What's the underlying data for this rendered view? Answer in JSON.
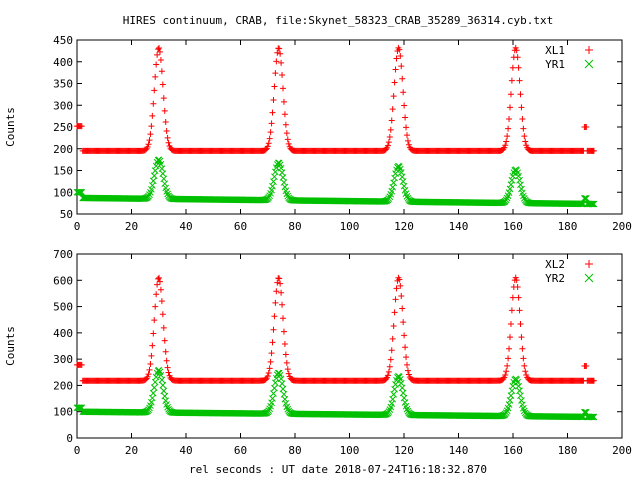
{
  "title": "HIRES continuum, CRAB, file:Skynet_58323_CRAB_35289_36314.cyb.txt",
  "xlabel": "rel seconds : UT date 2018-07-24T16:18:32.870",
  "chart_data": [
    {
      "type": "scatter",
      "ylabel": "Counts",
      "xlim": [
        0,
        200
      ],
      "ylim": [
        50,
        450
      ],
      "xticks": [
        0,
        20,
        40,
        60,
        80,
        100,
        120,
        140,
        160,
        180,
        200
      ],
      "yticks": [
        50,
        100,
        150,
        200,
        250,
        300,
        350,
        400,
        450
      ],
      "legend_position": "top-right",
      "series": [
        {
          "name": "XL1",
          "marker": "plus",
          "color": "#ff0000",
          "baseline": 195,
          "peaks": [
            {
              "x": 30,
              "y": 432
            },
            {
              "x": 74,
              "y": 432
            },
            {
              "x": 118,
              "y": 432
            },
            {
              "x": 161,
              "y": 432
            }
          ],
          "cal_segments": [
            {
              "x": [
                0,
                2
              ],
              "y": 252
            },
            {
              "x": [
                186,
                187
              ],
              "y": 250
            }
          ]
        },
        {
          "name": "YR1",
          "marker": "cross",
          "color": "#00c000",
          "baseline_start": 87,
          "baseline_end": 73,
          "peaks": [
            {
              "x": 30,
              "y": 175
            },
            {
              "x": 74,
              "y": 168
            },
            {
              "x": 118,
              "y": 160
            },
            {
              "x": 161,
              "y": 152
            }
          ],
          "cal_segments": [
            {
              "x": [
                0,
                2
              ],
              "y": 100
            },
            {
              "x": [
                186,
                187
              ],
              "y": 86
            }
          ]
        }
      ]
    },
    {
      "type": "scatter",
      "ylabel": "Counts",
      "xlim": [
        0,
        200
      ],
      "ylim": [
        0,
        700
      ],
      "xticks": [
        0,
        20,
        40,
        60,
        80,
        100,
        120,
        140,
        160,
        180,
        200
      ],
      "yticks": [
        0,
        100,
        200,
        300,
        400,
        500,
        600,
        700
      ],
      "legend_position": "top-right",
      "series": [
        {
          "name": "XL2",
          "marker": "plus",
          "color": "#ff0000",
          "baseline": 218,
          "peaks": [
            {
              "x": 30,
              "y": 610
            },
            {
              "x": 74,
              "y": 610
            },
            {
              "x": 118,
              "y": 610
            },
            {
              "x": 161,
              "y": 610
            }
          ],
          "cal_segments": [
            {
              "x": [
                0,
                2
              ],
              "y": 278
            },
            {
              "x": [
                186,
                187
              ],
              "y": 274
            }
          ]
        },
        {
          "name": "YR2",
          "marker": "cross",
          "color": "#00c000",
          "baseline_start": 100,
          "baseline_end": 80,
          "peaks": [
            {
              "x": 30,
              "y": 258
            },
            {
              "x": 74,
              "y": 248
            },
            {
              "x": 118,
              "y": 235
            },
            {
              "x": 161,
              "y": 225
            }
          ],
          "cal_segments": [
            {
              "x": [
                0,
                2
              ],
              "y": 115
            },
            {
              "x": [
                186,
                187
              ],
              "y": 98
            }
          ]
        }
      ]
    }
  ]
}
